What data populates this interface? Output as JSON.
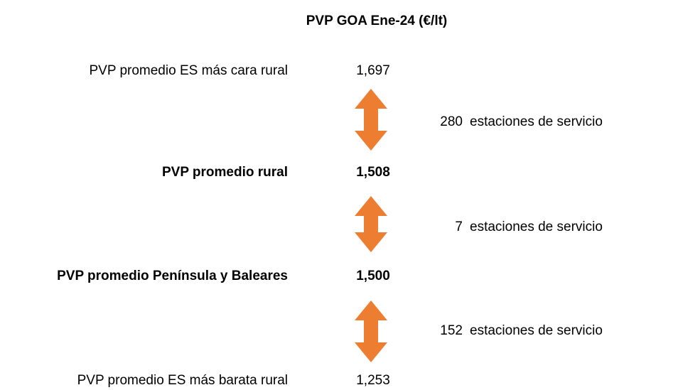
{
  "title": "PVP GOA Ene-24 (€/lt)",
  "levels": [
    {
      "label": "PVP promedio ES más cara rural",
      "value": "1,697",
      "bold": false
    },
    {
      "label": "PVP promedio rural",
      "value": "1,508",
      "bold": true
    },
    {
      "label": "PVP promedio Península y Baleares",
      "value": "1,500",
      "bold": true
    },
    {
      "label": "PVP promedio ES más barata rural",
      "value": "1,253",
      "bold": false
    }
  ],
  "gaps": [
    {
      "count": "280",
      "unit": "estaciones de servicio"
    },
    {
      "count": "7",
      "unit": "estaciones de servicio"
    },
    {
      "count": "152",
      "unit": "estaciones de servicio"
    }
  ]
}
